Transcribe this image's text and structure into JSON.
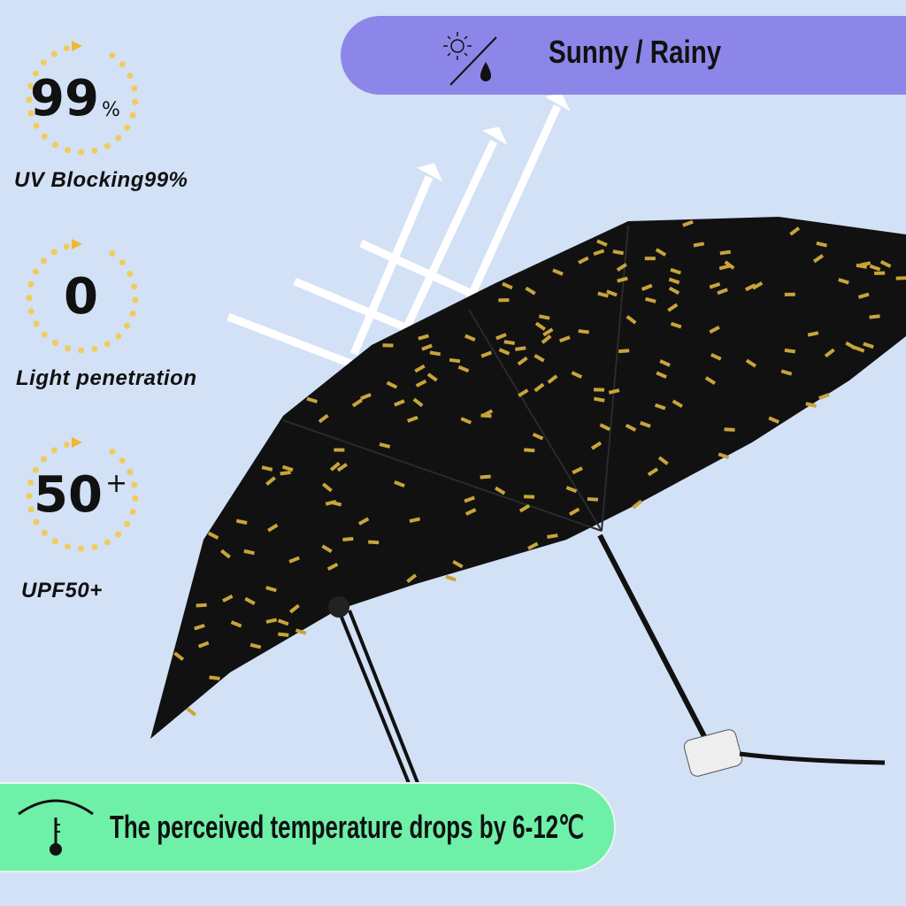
{
  "features": [
    {
      "value": "99",
      "suffix": "%",
      "label": "UV Blocking99%"
    },
    {
      "value": "0",
      "suffix": "",
      "label": "Light penetration"
    },
    {
      "value": "50",
      "suffix": "+",
      "label": "UPF50+"
    }
  ],
  "top_banner": {
    "text": "Sunny / Rainy",
    "icon": "sun-rain-icon",
    "color": "#8d86e9"
  },
  "bottom_banner": {
    "text": "The perceived temperature drops by 6-12℃",
    "icon": "thermometer-icon",
    "color": "#6ef0a9"
  },
  "colors": {
    "background": "#d2e1f6",
    "ring": "#f5c842",
    "umbrella": "#111111",
    "pattern": "#c9a43a"
  }
}
